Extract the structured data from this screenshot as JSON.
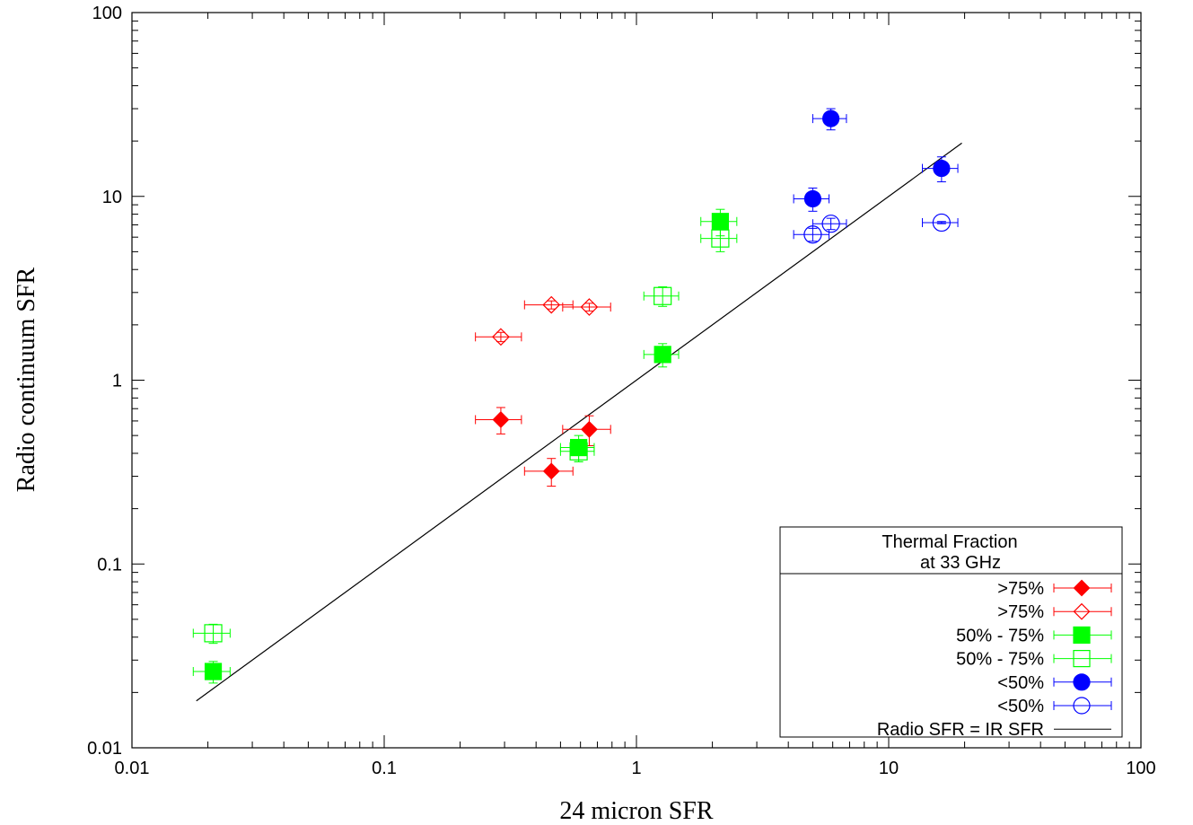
{
  "chart_data": {
    "type": "scatter",
    "x_scale": "log",
    "y_scale": "log",
    "xlim": [
      0.01,
      100
    ],
    "ylim": [
      0.01,
      100
    ],
    "xlabel": "24 micron SFR",
    "ylabel": "Radio continuum SFR",
    "x_tick_values": [
      0.01,
      0.1,
      1,
      10,
      100
    ],
    "x_tick_labels": [
      "0.01",
      "0.1",
      "1",
      "10",
      "100"
    ],
    "y_tick_values": [
      0.01,
      0.1,
      1,
      10,
      100
    ],
    "y_tick_labels": [
      "0.01",
      "0.1",
      "1",
      "10",
      "100"
    ],
    "grid": false,
    "legend": {
      "title_line1": "Thermal Fraction",
      "title_line2": "at 33 GHz",
      "placement": "bottom-right"
    },
    "series": [
      {
        "name": ">75%",
        "marker": "diamond",
        "filled": true,
        "color": "#ff0000",
        "points": [
          {
            "x": 0.29,
            "y": 0.61,
            "xerr": 0.06,
            "yerr": 0.1
          },
          {
            "x": 0.46,
            "y": 0.32,
            "xerr": 0.1,
            "yerr": 0.055
          },
          {
            "x": 0.65,
            "y": 0.54,
            "xerr": 0.14,
            "yerr": 0.1
          }
        ]
      },
      {
        "name": ">75%",
        "marker": "diamond",
        "filled": false,
        "color": "#ff0000",
        "points": [
          {
            "x": 0.29,
            "y": 1.72,
            "xerr": 0.06,
            "yerr": 0.1
          },
          {
            "x": 0.46,
            "y": 2.57,
            "xerr": 0.1,
            "yerr": 0.13
          },
          {
            "x": 0.65,
            "y": 2.5,
            "xerr": 0.14,
            "yerr": 0.12
          }
        ]
      },
      {
        "name": "50% - 75%",
        "marker": "square",
        "filled": true,
        "color": "#00ff00",
        "points": [
          {
            "x": 0.021,
            "y": 0.026,
            "xerr": 0.0035,
            "yerr": 0.0035
          },
          {
            "x": 0.59,
            "y": 0.43,
            "xerr": 0.09,
            "yerr": 0.07
          },
          {
            "x": 1.27,
            "y": 1.38,
            "xerr": 0.2,
            "yerr": 0.2
          },
          {
            "x": 2.15,
            "y": 7.3,
            "xerr": 0.35,
            "yerr": 1.2
          }
        ]
      },
      {
        "name": "50% - 75%",
        "marker": "square",
        "filled": false,
        "color": "#00ff00",
        "points": [
          {
            "x": 0.021,
            "y": 0.042,
            "xerr": 0.0035,
            "yerr": 0.005
          },
          {
            "x": 0.59,
            "y": 0.41,
            "xerr": 0.09,
            "yerr": 0.05
          },
          {
            "x": 1.27,
            "y": 2.87,
            "xerr": 0.2,
            "yerr": 0.35
          },
          {
            "x": 2.15,
            "y": 5.9,
            "xerr": 0.35,
            "yerr": 0.9
          }
        ]
      },
      {
        "name": "<50%",
        "marker": "circle",
        "filled": true,
        "color": "#0000ff",
        "points": [
          {
            "x": 5.9,
            "y": 26.5,
            "xerr": 0.9,
            "yerr": 3.5
          },
          {
            "x": 5.0,
            "y": 9.7,
            "xerr": 0.8,
            "yerr": 1.4
          },
          {
            "x": 16.2,
            "y": 14.2,
            "xerr": 2.6,
            "yerr": 2.2
          }
        ]
      },
      {
        "name": "<50%",
        "marker": "circle",
        "filled": false,
        "color": "#0000ff",
        "points": [
          {
            "x": 5.9,
            "y": 7.1,
            "xerr": 0.9,
            "yerr": 0.5
          },
          {
            "x": 5.0,
            "y": 6.2,
            "xerr": 0.8,
            "yerr": 0.5
          },
          {
            "x": 16.2,
            "y": 7.2,
            "xerr": 2.6,
            "yerr": 0.1
          }
        ]
      },
      {
        "name": "Radio SFR = IR SFR",
        "marker": "line",
        "filled": false,
        "color": "#000000",
        "line": {
          "x": [
            0.018,
            19.5
          ],
          "y": [
            0.018,
            19.5
          ]
        }
      }
    ]
  }
}
